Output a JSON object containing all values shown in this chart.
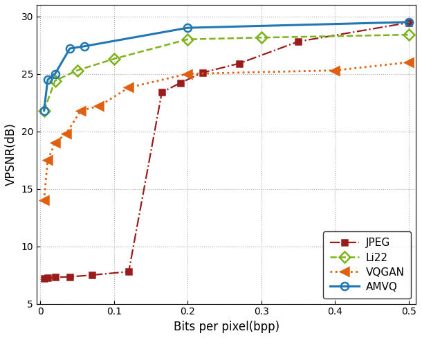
{
  "JPEG": {
    "x": [
      0.005,
      0.01,
      0.02,
      0.04,
      0.07,
      0.12,
      0.165,
      0.19,
      0.22,
      0.27,
      0.35,
      0.5
    ],
    "y": [
      7.2,
      7.25,
      7.3,
      7.35,
      7.5,
      7.8,
      23.4,
      24.2,
      25.1,
      25.9,
      27.8,
      29.45
    ],
    "color": "#9b1b1b",
    "linestyle": "-.",
    "marker": "s",
    "label": "JPEG",
    "linewidth": 1.6,
    "markersize": 6
  },
  "Li22": {
    "x": [
      0.005,
      0.02,
      0.05,
      0.1,
      0.2,
      0.3,
      0.5
    ],
    "y": [
      21.8,
      24.4,
      25.3,
      26.3,
      28.0,
      28.15,
      28.4
    ],
    "color": "#7db31a",
    "linestyle": "--",
    "marker": "D",
    "label": "Li22",
    "linewidth": 1.8,
    "markersize": 8
  },
  "VQGAN": {
    "x": [
      0.005,
      0.01,
      0.02,
      0.035,
      0.055,
      0.08,
      0.12,
      0.2,
      0.4,
      0.5
    ],
    "y": [
      14.0,
      17.5,
      19.0,
      19.8,
      21.8,
      22.2,
      23.8,
      25.0,
      25.3,
      26.0
    ],
    "color": "#e06010",
    "linestyle": ":",
    "marker": "<",
    "label": "VQGAN",
    "linewidth": 2.0,
    "markersize": 9
  },
  "AMVQ": {
    "x": [
      0.005,
      0.01,
      0.02,
      0.04,
      0.06,
      0.2,
      0.5
    ],
    "y": [
      21.8,
      24.5,
      25.0,
      27.2,
      27.4,
      29.0,
      29.5
    ],
    "color": "#2077b4",
    "linestyle": "-",
    "marker": "o",
    "label": "AMVQ",
    "linewidth": 2.2,
    "markersize": 8
  },
  "xlim": [
    -0.005,
    0.51
  ],
  "ylim": [
    5,
    31
  ],
  "xlabel": "Bits per pixel(bpp)",
  "ylabel": "VPSNR(dB)",
  "yticks": [
    5,
    10,
    15,
    20,
    25,
    30
  ],
  "xticks": [
    0.0,
    0.1,
    0.2,
    0.3,
    0.4,
    0.5
  ],
  "xtick_labels": [
    "0",
    "0.1",
    "0.2",
    "0.3",
    "0.4",
    "0.5"
  ],
  "legend_order": [
    "JPEG",
    "Li22",
    "VQGAN",
    "AMVQ"
  ],
  "grid": true,
  "figsize": [
    6.1,
    4.88
  ],
  "dpi": 100
}
